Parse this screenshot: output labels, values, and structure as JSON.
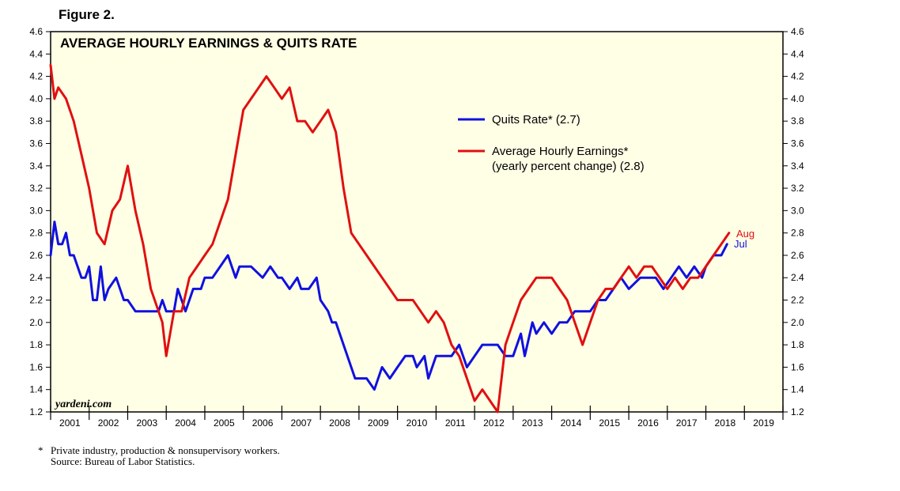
{
  "figure_label": "Figure 2.",
  "footnote": {
    "marker": "*",
    "line1": "Private industry, production & nonsupervisory workers.",
    "line2": "Source: Bureau of Labor Statistics."
  },
  "chart_data": {
    "type": "line",
    "title": "AVERAGE HOURLY EARNINGS & QUITS RATE",
    "watermark": "yardeni.com",
    "ylim": [
      1.2,
      4.6
    ],
    "yticks": [
      "1.2",
      "1.4",
      "1.6",
      "1.8",
      "2.0",
      "2.2",
      "2.4",
      "2.6",
      "2.8",
      "3.0",
      "3.2",
      "3.4",
      "3.6",
      "3.8",
      "4.0",
      "4.2",
      "4.4",
      "4.6"
    ],
    "xlim": [
      2001.0,
      2020.0
    ],
    "xtick_labels": [
      "2001",
      "2002",
      "2003",
      "2004",
      "2005",
      "2006",
      "2007",
      "2008",
      "2009",
      "2010",
      "2011",
      "2012",
      "2013",
      "2014",
      "2015",
      "2016",
      "2017",
      "2018",
      "2019"
    ],
    "background_color": "#FFFFE6",
    "series": [
      {
        "name": "Quits Rate*",
        "legend_label": "Quits Rate* (2.7)",
        "color": "#1010E0",
        "end_label": "Jul",
        "x": [
          2001.0,
          2001.1,
          2001.2,
          2001.3,
          2001.4,
          2001.5,
          2001.6,
          2001.8,
          2001.9,
          2002.0,
          2002.1,
          2002.2,
          2002.3,
          2002.4,
          2002.5,
          2002.7,
          2002.9,
          2003.0,
          2003.2,
          2003.5,
          2003.8,
          2003.9,
          2004.0,
          2004.2,
          2004.3,
          2004.5,
          2004.7,
          2004.9,
          2005.0,
          2005.2,
          2005.4,
          2005.6,
          2005.8,
          2005.9,
          2006.0,
          2006.2,
          2006.5,
          2006.7,
          2006.9,
          2007.0,
          2007.2,
          2007.4,
          2007.5,
          2007.6,
          2007.7,
          2007.9,
          2008.0,
          2008.2,
          2008.3,
          2008.4,
          2008.6,
          2008.8,
          2008.9,
          2009.0,
          2009.2,
          2009.4,
          2009.6,
          2009.8,
          2010.0,
          2010.2,
          2010.4,
          2010.5,
          2010.7,
          2010.8,
          2011.0,
          2011.2,
          2011.4,
          2011.6,
          2011.8,
          2012.0,
          2012.2,
          2012.4,
          2012.6,
          2012.8,
          2013.0,
          2013.2,
          2013.3,
          2013.5,
          2013.6,
          2013.8,
          2014.0,
          2014.2,
          2014.4,
          2014.6,
          2014.8,
          2015.0,
          2015.2,
          2015.4,
          2015.6,
          2015.8,
          2016.0,
          2016.3,
          2016.5,
          2016.7,
          2016.9,
          2017.1,
          2017.3,
          2017.5,
          2017.7,
          2017.9,
          2018.0,
          2018.2,
          2018.4,
          2018.55
        ],
        "values": [
          2.6,
          2.9,
          2.7,
          2.7,
          2.8,
          2.6,
          2.6,
          2.4,
          2.4,
          2.5,
          2.2,
          2.2,
          2.5,
          2.2,
          2.3,
          2.4,
          2.2,
          2.2,
          2.1,
          2.1,
          2.1,
          2.2,
          2.1,
          2.1,
          2.3,
          2.1,
          2.3,
          2.3,
          2.4,
          2.4,
          2.5,
          2.6,
          2.4,
          2.5,
          2.5,
          2.5,
          2.4,
          2.5,
          2.4,
          2.4,
          2.3,
          2.4,
          2.3,
          2.3,
          2.3,
          2.4,
          2.2,
          2.1,
          2.0,
          2.0,
          1.8,
          1.6,
          1.5,
          1.5,
          1.5,
          1.4,
          1.6,
          1.5,
          1.6,
          1.7,
          1.7,
          1.6,
          1.7,
          1.5,
          1.7,
          1.7,
          1.7,
          1.8,
          1.6,
          1.7,
          1.8,
          1.8,
          1.8,
          1.7,
          1.7,
          1.9,
          1.7,
          2.0,
          1.9,
          2.0,
          1.9,
          2.0,
          2.0,
          2.1,
          2.1,
          2.1,
          2.2,
          2.2,
          2.3,
          2.4,
          2.3,
          2.4,
          2.4,
          2.4,
          2.3,
          2.4,
          2.5,
          2.4,
          2.5,
          2.4,
          2.5,
          2.6,
          2.6,
          2.7
        ]
      },
      {
        "name": "Average Hourly Earnings*",
        "legend_label": "Average Hourly Earnings*",
        "legend_label_2": "(yearly percent change) (2.8)",
        "color": "#E01010",
        "end_label": "Aug",
        "x": [
          2001.0,
          2001.1,
          2001.2,
          2001.4,
          2001.6,
          2001.8,
          2002.0,
          2002.2,
          2002.4,
          2002.6,
          2002.8,
          2003.0,
          2003.2,
          2003.4,
          2003.6,
          2003.8,
          2003.9,
          2004.0,
          2004.1,
          2004.2,
          2004.4,
          2004.6,
          2004.8,
          2005.0,
          2005.2,
          2005.4,
          2005.6,
          2005.8,
          2005.9,
          2006.0,
          2006.2,
          2006.4,
          2006.6,
          2006.8,
          2007.0,
          2007.2,
          2007.4,
          2007.6,
          2007.8,
          2008.0,
          2008.2,
          2008.4,
          2008.6,
          2008.8,
          2009.0,
          2009.2,
          2009.4,
          2009.6,
          2009.8,
          2010.0,
          2010.2,
          2010.4,
          2010.6,
          2010.8,
          2011.0,
          2011.2,
          2011.4,
          2011.6,
          2011.8,
          2012.0,
          2012.2,
          2012.4,
          2012.6,
          2012.7,
          2012.8,
          2013.0,
          2013.2,
          2013.4,
          2013.6,
          2013.8,
          2014.0,
          2014.2,
          2014.4,
          2014.6,
          2014.8,
          2015.0,
          2015.2,
          2015.4,
          2015.6,
          2015.8,
          2016.0,
          2016.2,
          2016.4,
          2016.6,
          2016.8,
          2017.0,
          2017.2,
          2017.4,
          2017.6,
          2017.8,
          2018.0,
          2018.2,
          2018.4,
          2018.6
        ],
        "values": [
          4.3,
          4.0,
          4.1,
          4.0,
          3.8,
          3.5,
          3.2,
          2.8,
          2.7,
          3.0,
          3.1,
          3.4,
          3.0,
          2.7,
          2.3,
          2.1,
          2.0,
          1.7,
          1.9,
          2.1,
          2.1,
          2.4,
          2.5,
          2.6,
          2.7,
          2.9,
          3.1,
          3.5,
          3.7,
          3.9,
          4.0,
          4.1,
          4.2,
          4.1,
          4.0,
          4.1,
          3.8,
          3.8,
          3.7,
          3.8,
          3.9,
          3.7,
          3.2,
          2.8,
          2.7,
          2.6,
          2.5,
          2.4,
          2.3,
          2.2,
          2.2,
          2.2,
          2.1,
          2.0,
          2.1,
          2.0,
          1.8,
          1.7,
          1.5,
          1.3,
          1.4,
          1.3,
          1.2,
          1.5,
          1.8,
          2.0,
          2.2,
          2.3,
          2.4,
          2.4,
          2.4,
          2.3,
          2.2,
          2.0,
          1.8,
          2.0,
          2.2,
          2.3,
          2.3,
          2.4,
          2.5,
          2.4,
          2.5,
          2.5,
          2.4,
          2.3,
          2.4,
          2.3,
          2.4,
          2.4,
          2.5,
          2.6,
          2.7,
          2.8
        ]
      }
    ],
    "legend_placement": "center-right"
  }
}
